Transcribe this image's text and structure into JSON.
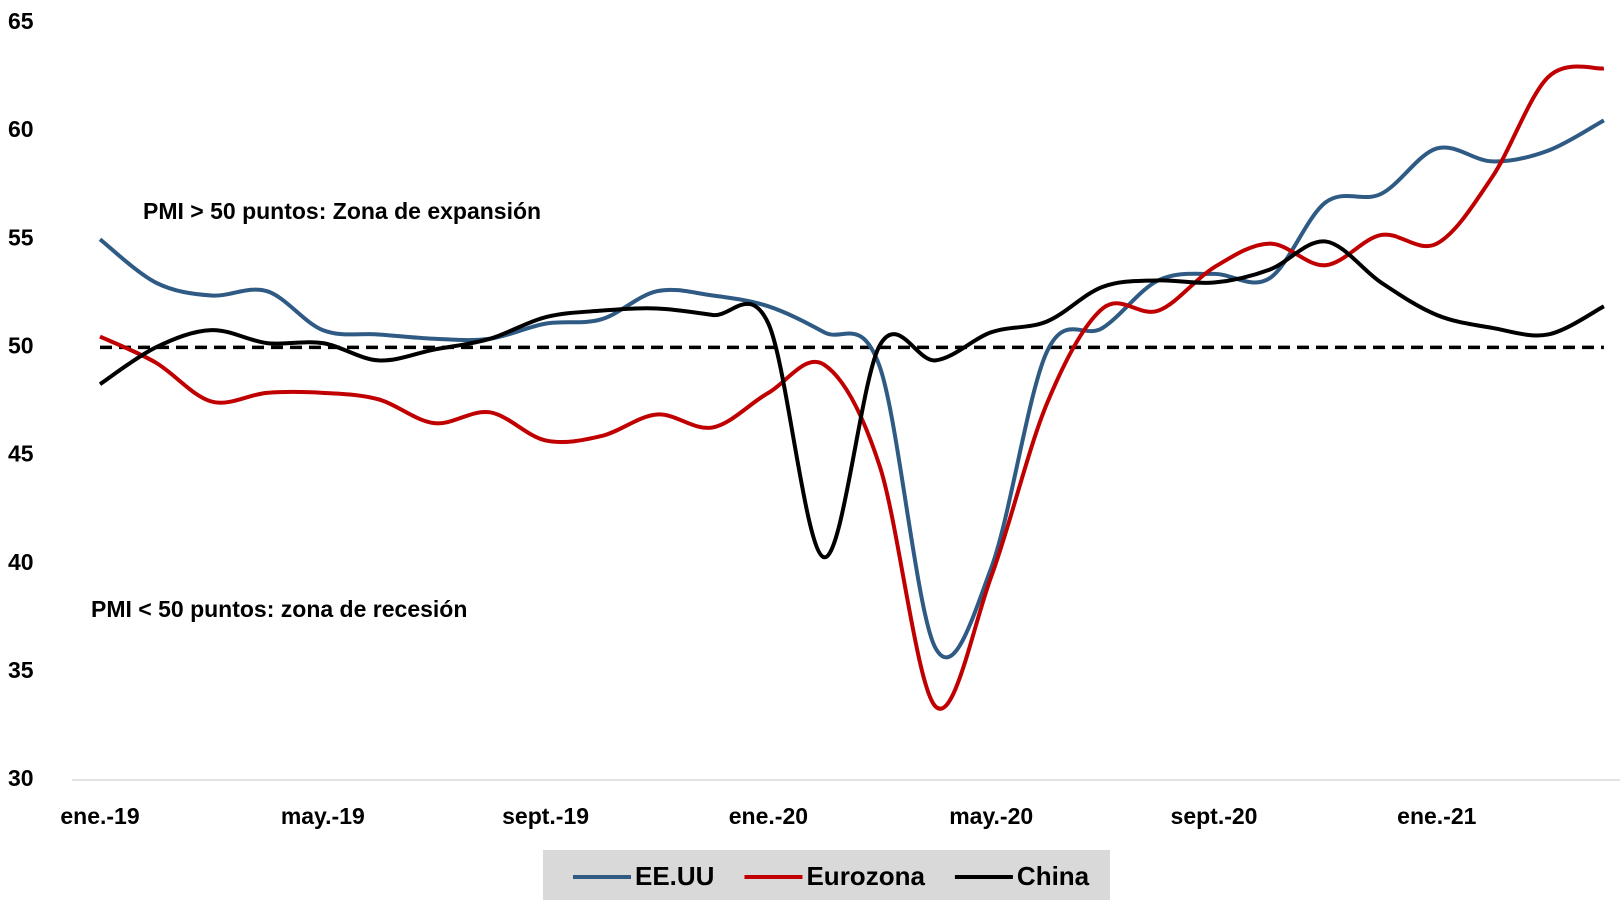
{
  "chart_data": {
    "type": "line",
    "categories": [
      "ene.-19",
      null,
      null,
      null,
      "may.-19",
      null,
      null,
      null,
      "sept.-19",
      null,
      null,
      null,
      "ene.-20",
      null,
      null,
      null,
      "may.-20",
      null,
      null,
      null,
      "sept.-20",
      null,
      null,
      null,
      "ene.-21",
      null,
      null,
      null
    ],
    "series": [
      {
        "name": "EE.UU",
        "color": "#2e5a83",
        "values": [
          55.0,
          53.0,
          52.4,
          52.6,
          50.8,
          50.6,
          50.4,
          50.4,
          51.1,
          51.3,
          52.6,
          52.4,
          51.9,
          50.7,
          49.1,
          36.1,
          39.8,
          49.8,
          50.9,
          53.1,
          53.4,
          53.2,
          56.7,
          57.1,
          59.2,
          58.6,
          59.1,
          60.5
        ]
      },
      {
        "name": "Eurozona",
        "color": "#c00000",
        "values": [
          50.5,
          49.3,
          47.5,
          47.9,
          47.9,
          47.6,
          46.5,
          47.0,
          45.7,
          45.9,
          46.9,
          46.3,
          47.9,
          49.2,
          44.5,
          33.4,
          39.4,
          47.4,
          51.8,
          51.7,
          53.7,
          54.8,
          53.8,
          55.2,
          54.8,
          57.9,
          62.5,
          62.9
        ]
      },
      {
        "name": "China",
        "color": "#000000",
        "values": [
          48.3,
          50.0,
          50.8,
          50.2,
          50.2,
          49.4,
          49.9,
          50.4,
          51.4,
          51.7,
          51.8,
          51.5,
          51.1,
          40.3,
          50.1,
          49.4,
          50.7,
          51.2,
          52.8,
          53.1,
          53.0,
          53.6,
          54.9,
          53.0,
          51.5,
          50.9,
          50.6,
          51.9
        ]
      }
    ],
    "reference_line": 50,
    "annotations": [
      "PMI > 50 puntos: Zona de expansión",
      "PMI < 50 puntos: zona de recesión"
    ],
    "ylim": [
      30,
      65
    ],
    "yticks": [
      30,
      35,
      40,
      45,
      50,
      55,
      60,
      65
    ],
    "grid": false,
    "legend": "bottom"
  }
}
